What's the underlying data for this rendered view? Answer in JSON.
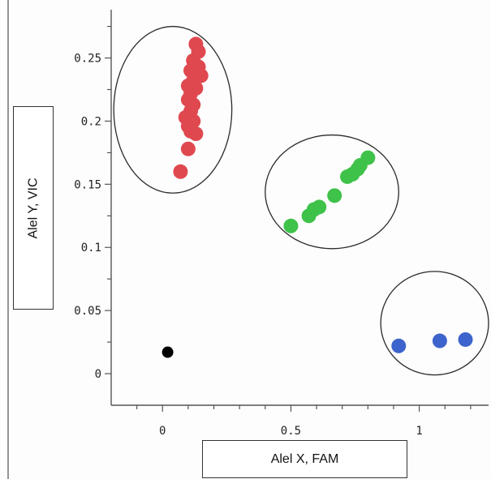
{
  "chart_data": {
    "type": "scatter",
    "title": "",
    "xlabel": "Alel X, FAM",
    "ylabel": "Alel Y, VIC",
    "xlim": [
      -0.2,
      1.27
    ],
    "ylim": [
      -0.025,
      0.285
    ],
    "x_ticks": [
      0,
      0.5,
      1
    ],
    "x_tick_labels": [
      "0",
      "0.5",
      "1"
    ],
    "y_ticks": [
      0,
      0.05,
      0.1,
      0.15,
      0.2,
      0.25
    ],
    "y_tick_labels": [
      "0",
      "0.05",
      "0.1",
      "0.15",
      "0.2",
      "0.25"
    ],
    "grid": false,
    "legend": "none",
    "series": [
      {
        "color": "#e0484f",
        "points": [
          {
            "x": 0.13,
            "y": 0.261
          },
          {
            "x": 0.14,
            "y": 0.255
          },
          {
            "x": 0.12,
            "y": 0.248
          },
          {
            "x": 0.14,
            "y": 0.243
          },
          {
            "x": 0.11,
            "y": 0.24
          },
          {
            "x": 0.15,
            "y": 0.236
          },
          {
            "x": 0.12,
            "y": 0.232
          },
          {
            "x": 0.1,
            "y": 0.228
          },
          {
            "x": 0.13,
            "y": 0.226
          },
          {
            "x": 0.11,
            "y": 0.222
          },
          {
            "x": 0.1,
            "y": 0.217
          },
          {
            "x": 0.12,
            "y": 0.213
          },
          {
            "x": 0.11,
            "y": 0.208
          },
          {
            "x": 0.09,
            "y": 0.203
          },
          {
            "x": 0.12,
            "y": 0.2
          },
          {
            "x": 0.1,
            "y": 0.196
          },
          {
            "x": 0.11,
            "y": 0.192
          },
          {
            "x": 0.13,
            "y": 0.19
          },
          {
            "x": 0.1,
            "y": 0.178
          },
          {
            "x": 0.07,
            "y": 0.16
          }
        ]
      },
      {
        "color": "#3fc24a",
        "points": [
          {
            "x": 0.5,
            "y": 0.117
          },
          {
            "x": 0.57,
            "y": 0.125
          },
          {
            "x": 0.59,
            "y": 0.13
          },
          {
            "x": 0.61,
            "y": 0.132
          },
          {
            "x": 0.67,
            "y": 0.141
          },
          {
            "x": 0.72,
            "y": 0.156
          },
          {
            "x": 0.74,
            "y": 0.158
          },
          {
            "x": 0.76,
            "y": 0.162
          },
          {
            "x": 0.77,
            "y": 0.165
          },
          {
            "x": 0.8,
            "y": 0.171
          }
        ]
      },
      {
        "color": "#3d64cc",
        "points": [
          {
            "x": 0.92,
            "y": 0.022
          },
          {
            "x": 1.08,
            "y": 0.026
          },
          {
            "x": 1.18,
            "y": 0.027
          }
        ]
      },
      {
        "color": "#000000",
        "points": [
          {
            "x": 0.02,
            "y": 0.017
          }
        ]
      }
    ],
    "cluster_ellipses": [
      {
        "cx": 0.04,
        "cy": 0.209,
        "rx": 0.23,
        "ry": 0.066
      },
      {
        "cx": 0.66,
        "cy": 0.144,
        "rx": 0.26,
        "ry": 0.045
      },
      {
        "cx": 1.06,
        "cy": 0.04,
        "rx": 0.21,
        "ry": 0.041
      }
    ]
  }
}
